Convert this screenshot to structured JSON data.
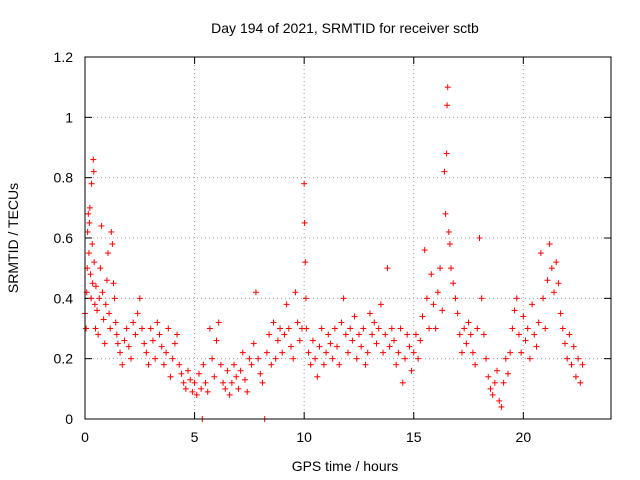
{
  "chart_data": {
    "type": "scatter",
    "title": "Day 194 of 2021, SRMTID for receiver sctb",
    "xlabel": "GPS time / hours",
    "ylabel": "SRMTID / TECUs",
    "xlim": [
      0,
      24
    ],
    "ylim": [
      0,
      1.2
    ],
    "xticks": [
      0,
      5,
      10,
      15,
      20
    ],
    "xtick_labels": [
      "0",
      "5",
      "10",
      "15",
      "20"
    ],
    "yticks": [
      0,
      0.2,
      0.4,
      0.6,
      0.8,
      1.0,
      1.2
    ],
    "ytick_labels": [
      "0",
      "0.2",
      "0.4",
      "0.6",
      "0.8",
      "1",
      "1.2"
    ],
    "grid": true,
    "marker": "+",
    "color": "#ff0000",
    "series": [
      {
        "name": "SRMTID",
        "points": [
          [
            0.0,
            0.35
          ],
          [
            0.05,
            0.3
          ],
          [
            0.08,
            0.42
          ],
          [
            0.1,
            0.5
          ],
          [
            0.12,
            0.62
          ],
          [
            0.15,
            0.68
          ],
          [
            0.18,
            0.55
          ],
          [
            0.2,
            0.65
          ],
          [
            0.22,
            0.7
          ],
          [
            0.25,
            0.48
          ],
          [
            0.28,
            0.4
          ],
          [
            0.3,
            0.78
          ],
          [
            0.33,
            0.58
          ],
          [
            0.35,
            0.45
          ],
          [
            0.38,
            0.86
          ],
          [
            0.4,
            0.82
          ],
          [
            0.42,
            0.52
          ],
          [
            0.45,
            0.38
          ],
          [
            0.48,
            0.3
          ],
          [
            0.5,
            0.44
          ],
          [
            0.55,
            0.36
          ],
          [
            0.6,
            0.28
          ],
          [
            0.65,
            0.4
          ],
          [
            0.7,
            0.5
          ],
          [
            0.75,
            0.64
          ],
          [
            0.8,
            0.42
          ],
          [
            0.85,
            0.33
          ],
          [
            0.9,
            0.25
          ],
          [
            0.95,
            0.38
          ],
          [
            1.0,
            0.46
          ],
          [
            1.05,
            0.55
          ],
          [
            1.1,
            0.35
          ],
          [
            1.15,
            0.3
          ],
          [
            1.2,
            0.62
          ],
          [
            1.25,
            0.58
          ],
          [
            1.3,
            0.45
          ],
          [
            1.35,
            0.4
          ],
          [
            1.4,
            0.32
          ],
          [
            1.45,
            0.28
          ],
          [
            1.5,
            0.25
          ],
          [
            1.6,
            0.22
          ],
          [
            1.7,
            0.18
          ],
          [
            1.8,
            0.26
          ],
          [
            1.9,
            0.3
          ],
          [
            2.0,
            0.24
          ],
          [
            2.1,
            0.2
          ],
          [
            2.2,
            0.32
          ],
          [
            2.3,
            0.28
          ],
          [
            2.4,
            0.35
          ],
          [
            2.5,
            0.4
          ],
          [
            2.6,
            0.3
          ],
          [
            2.7,
            0.25
          ],
          [
            2.8,
            0.22
          ],
          [
            2.9,
            0.18
          ],
          [
            3.0,
            0.3
          ],
          [
            3.1,
            0.26
          ],
          [
            3.2,
            0.2
          ],
          [
            3.3,
            0.32
          ],
          [
            3.4,
            0.28
          ],
          [
            3.5,
            0.24
          ],
          [
            3.6,
            0.18
          ],
          [
            3.7,
            0.22
          ],
          [
            3.8,
            0.3
          ],
          [
            3.9,
            0.14
          ],
          [
            4.0,
            0.2
          ],
          [
            4.1,
            0.25
          ],
          [
            4.2,
            0.28
          ],
          [
            4.3,
            0.18
          ],
          [
            4.4,
            0.15
          ],
          [
            4.5,
            0.12
          ],
          [
            4.6,
            0.1
          ],
          [
            4.7,
            0.16
          ],
          [
            4.8,
            0.13
          ],
          [
            4.9,
            0.09
          ],
          [
            5.0,
            0.12
          ],
          [
            5.1,
            0.08
          ],
          [
            5.2,
            0.15
          ],
          [
            5.3,
            0.1
          ],
          [
            5.35,
            0.0
          ],
          [
            5.4,
            0.18
          ],
          [
            5.5,
            0.12
          ],
          [
            5.6,
            0.09
          ],
          [
            5.7,
            0.3
          ],
          [
            5.8,
            0.2
          ],
          [
            5.9,
            0.14
          ],
          [
            6.0,
            0.26
          ],
          [
            6.1,
            0.32
          ],
          [
            6.2,
            0.18
          ],
          [
            6.3,
            0.12
          ],
          [
            6.4,
            0.1
          ],
          [
            6.5,
            0.16
          ],
          [
            6.6,
            0.08
          ],
          [
            6.7,
            0.12
          ],
          [
            6.8,
            0.18
          ],
          [
            6.9,
            0.14
          ],
          [
            7.0,
            0.1
          ],
          [
            7.1,
            0.16
          ],
          [
            7.2,
            0.22
          ],
          [
            7.3,
            0.13
          ],
          [
            7.4,
            0.09
          ],
          [
            7.5,
            0.2
          ],
          [
            7.6,
            0.18
          ],
          [
            7.7,
            0.25
          ],
          [
            7.8,
            0.42
          ],
          [
            7.9,
            0.2
          ],
          [
            8.0,
            0.15
          ],
          [
            8.1,
            0.12
          ],
          [
            8.2,
            0.0
          ],
          [
            8.3,
            0.22
          ],
          [
            8.4,
            0.28
          ],
          [
            8.5,
            0.18
          ],
          [
            8.6,
            0.32
          ],
          [
            8.7,
            0.2
          ],
          [
            8.8,
            0.26
          ],
          [
            8.9,
            0.3
          ],
          [
            9.0,
            0.22
          ],
          [
            9.1,
            0.28
          ],
          [
            9.2,
            0.38
          ],
          [
            9.3,
            0.3
          ],
          [
            9.4,
            0.24
          ],
          [
            9.5,
            0.2
          ],
          [
            9.6,
            0.42
          ],
          [
            9.7,
            0.32
          ],
          [
            9.8,
            0.26
          ],
          [
            9.9,
            0.3
          ],
          [
            10.0,
            0.78
          ],
          [
            10.02,
            0.65
          ],
          [
            10.05,
            0.52
          ],
          [
            10.08,
            0.4
          ],
          [
            10.1,
            0.3
          ],
          [
            10.2,
            0.22
          ],
          [
            10.3,
            0.18
          ],
          [
            10.4,
            0.26
          ],
          [
            10.5,
            0.2
          ],
          [
            10.6,
            0.14
          ],
          [
            10.7,
            0.24
          ],
          [
            10.8,
            0.3
          ],
          [
            10.9,
            0.18
          ],
          [
            11.0,
            0.22
          ],
          [
            11.1,
            0.28
          ],
          [
            11.2,
            0.25
          ],
          [
            11.3,
            0.2
          ],
          [
            11.4,
            0.3
          ],
          [
            11.5,
            0.24
          ],
          [
            11.6,
            0.18
          ],
          [
            11.7,
            0.32
          ],
          [
            11.8,
            0.4
          ],
          [
            11.9,
            0.28
          ],
          [
            12.0,
            0.22
          ],
          [
            12.1,
            0.3
          ],
          [
            12.2,
            0.26
          ],
          [
            12.3,
            0.34
          ],
          [
            12.4,
            0.2
          ],
          [
            12.5,
            0.28
          ],
          [
            12.6,
            0.24
          ],
          [
            12.7,
            0.3
          ],
          [
            12.8,
            0.18
          ],
          [
            12.9,
            0.22
          ],
          [
            13.0,
            0.35
          ],
          [
            13.1,
            0.28
          ],
          [
            13.2,
            0.32
          ],
          [
            13.3,
            0.25
          ],
          [
            13.4,
            0.3
          ],
          [
            13.5,
            0.38
          ],
          [
            13.6,
            0.22
          ],
          [
            13.7,
            0.28
          ],
          [
            13.8,
            0.5
          ],
          [
            13.9,
            0.24
          ],
          [
            14.0,
            0.3
          ],
          [
            14.1,
            0.26
          ],
          [
            14.2,
            0.18
          ],
          [
            14.3,
            0.22
          ],
          [
            14.4,
            0.3
          ],
          [
            14.5,
            0.12
          ],
          [
            14.6,
            0.2
          ],
          [
            14.7,
            0.28
          ],
          [
            14.8,
            0.24
          ],
          [
            14.9,
            0.16
          ],
          [
            15.0,
            0.22
          ],
          [
            15.1,
            0.28
          ],
          [
            15.2,
            0.2
          ],
          [
            15.3,
            0.26
          ],
          [
            15.4,
            0.34
          ],
          [
            15.5,
            0.56
          ],
          [
            15.6,
            0.4
          ],
          [
            15.7,
            0.3
          ],
          [
            15.8,
            0.48
          ],
          [
            15.9,
            0.38
          ],
          [
            16.0,
            0.3
          ],
          [
            16.1,
            0.42
          ],
          [
            16.2,
            0.5
          ],
          [
            16.3,
            0.36
          ],
          [
            16.4,
            0.82
          ],
          [
            16.45,
            0.68
          ],
          [
            16.5,
            0.88
          ],
          [
            16.52,
            1.04
          ],
          [
            16.55,
            1.1
          ],
          [
            16.6,
            0.62
          ],
          [
            16.65,
            0.58
          ],
          [
            16.7,
            0.5
          ],
          [
            16.8,
            0.45
          ],
          [
            16.9,
            0.4
          ],
          [
            17.0,
            0.35
          ],
          [
            17.1,
            0.28
          ],
          [
            17.2,
            0.22
          ],
          [
            17.3,
            0.3
          ],
          [
            17.4,
            0.25
          ],
          [
            17.5,
            0.32
          ],
          [
            17.6,
            0.28
          ],
          [
            17.7,
            0.22
          ],
          [
            17.8,
            0.18
          ],
          [
            17.9,
            0.3
          ],
          [
            18.0,
            0.6
          ],
          [
            18.1,
            0.4
          ],
          [
            18.2,
            0.28
          ],
          [
            18.3,
            0.2
          ],
          [
            18.4,
            0.14
          ],
          [
            18.5,
            0.1
          ],
          [
            18.6,
            0.08
          ],
          [
            18.7,
            0.12
          ],
          [
            18.8,
            0.16
          ],
          [
            18.9,
            0.06
          ],
          [
            19.0,
            0.04
          ],
          [
            19.1,
            0.12
          ],
          [
            19.2,
            0.2
          ],
          [
            19.3,
            0.15
          ],
          [
            19.4,
            0.22
          ],
          [
            19.5,
            0.3
          ],
          [
            19.6,
            0.36
          ],
          [
            19.7,
            0.4
          ],
          [
            19.8,
            0.28
          ],
          [
            19.9,
            0.22
          ],
          [
            20.0,
            0.34
          ],
          [
            20.1,
            0.26
          ],
          [
            20.2,
            0.3
          ],
          [
            20.3,
            0.2
          ],
          [
            20.4,
            0.38
          ],
          [
            20.5,
            0.28
          ],
          [
            20.6,
            0.24
          ],
          [
            20.7,
            0.32
          ],
          [
            20.8,
            0.55
          ],
          [
            20.9,
            0.4
          ],
          [
            21.0,
            0.3
          ],
          [
            21.1,
            0.46
          ],
          [
            21.2,
            0.58
          ],
          [
            21.3,
            0.5
          ],
          [
            21.4,
            0.42
          ],
          [
            21.5,
            0.52
          ],
          [
            21.6,
            0.45
          ],
          [
            21.7,
            0.35
          ],
          [
            21.8,
            0.3
          ],
          [
            21.9,
            0.25
          ],
          [
            22.0,
            0.2
          ],
          [
            22.1,
            0.28
          ],
          [
            22.2,
            0.18
          ],
          [
            22.3,
            0.24
          ],
          [
            22.4,
            0.14
          ],
          [
            22.5,
            0.2
          ],
          [
            22.6,
            0.12
          ],
          [
            22.7,
            0.18
          ]
        ]
      }
    ]
  }
}
